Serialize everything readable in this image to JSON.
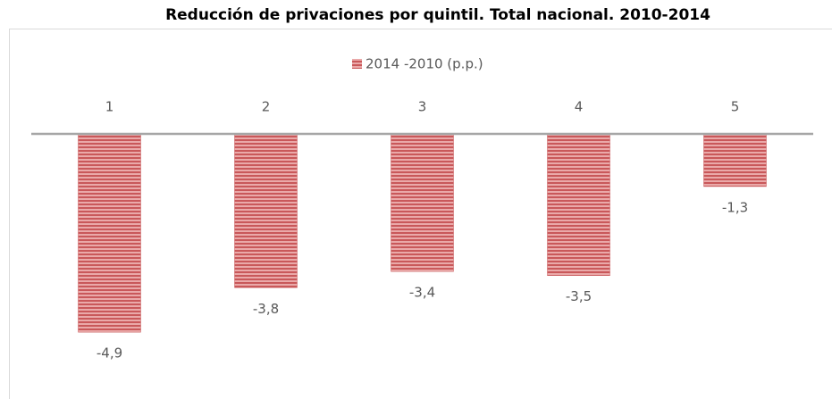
{
  "chart_data": {
    "type": "bar",
    "title": "Reducción de privaciones por quintil. Total nacional. 2010-2014",
    "categories": [
      "1",
      "2",
      "3",
      "4",
      "5"
    ],
    "series": [
      {
        "name": "2014 -2010 (p.p.)",
        "color": "#c9585a",
        "values": [
          -4.9,
          -3.8,
          -3.4,
          -3.5,
          -1.3
        ],
        "value_labels": [
          "-4,9",
          "-3,8",
          "-3,4",
          "-3,5",
          "-1,3"
        ]
      }
    ],
    "ylim": [
      -6,
      0
    ],
    "legend": "top"
  }
}
